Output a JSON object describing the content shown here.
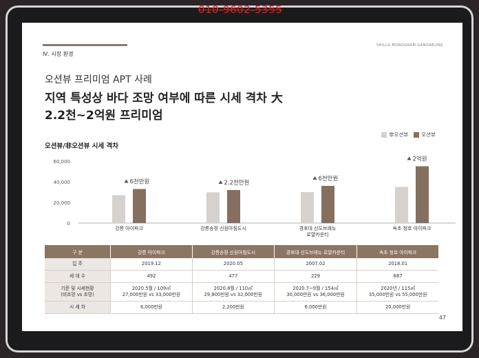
{
  "phone": "010-9602-5355",
  "header": {
    "section": "Ⅳ. 시장 환경",
    "brand": "SHILLA MONOGRAM GANGNEUNG"
  },
  "subtitle": "오션뷰 프리미엄 APT 사례",
  "headline": [
    "지역 특성상 바다 조망 여부에 따른 시세 격차 大",
    "2.2천~2억원 프리미엄"
  ],
  "chart_title": "오션뷰/非오션뷰 시세 격차",
  "colors": {
    "non_ocean": "#d6d1cc",
    "ocean": "#85705f",
    "table_header": "#8b7563",
    "arrow": "#555555"
  },
  "chart_data": {
    "type": "bar",
    "title": "오션뷰/非오션뷰 시세 격차",
    "categories": [
      "강릉 아이파크",
      "강릉송정 신원아침도시",
      "경포대 신도브래뉴 로얄카운티",
      "속초 청호 아이파크"
    ],
    "category_lines": [
      [
        "강릉 아이파크"
      ],
      [
        "강릉송정 신원아침도시"
      ],
      [
        "경포대 신도브래뉴",
        "로얄카운티"
      ],
      [
        "속초 청호 아이파크"
      ]
    ],
    "series": [
      {
        "name": "非오션뷰",
        "values": [
          27000,
          29800,
          30000,
          35000
        ]
      },
      {
        "name": "오션뷰",
        "values": [
          33000,
          32000,
          36000,
          55000
        ]
      }
    ],
    "annotations": [
      "6천만원",
      "2.2천만원",
      "6천만원",
      "2억원"
    ],
    "yticks": [
      "0",
      "20,000",
      "40,000",
      "60,000"
    ],
    "ylim": [
      0,
      60000
    ],
    "legend_position": "top-right",
    "grid": false
  },
  "table": {
    "headers": [
      "구 분",
      "강릉 아이파크",
      "강릉송정 신원아침도시",
      "경포대 신도브래뉴 로얄카운티",
      "속초 청호 아이파크"
    ],
    "rows": [
      {
        "label": [
          "입 주"
        ],
        "cells": [
          [
            "2019.12"
          ],
          [
            "2020.05"
          ],
          [
            "2007.02"
          ],
          [
            "2018.01"
          ]
        ]
      },
      {
        "label": [
          "세 대 수"
        ],
        "cells": [
          [
            "492"
          ],
          [
            "477"
          ],
          [
            "229"
          ],
          [
            "687"
          ]
        ]
      },
      {
        "label": [
          "기준 및 시세현황",
          "(비조망 vs 조망)"
        ],
        "cells": [
          [
            "2020.5월 / 109㎡",
            "27,000만원 vs 33,000만원"
          ],
          [
            "2020.8월 / 110㎡",
            "29,800만원 vs 32,000만원"
          ],
          [
            "2020.7~9월 / 154㎡",
            "30,000만원 vs 36,000만원"
          ],
          [
            "2020년 / 115㎡",
            "35,000만원 vs 55,000만원"
          ]
        ]
      },
      {
        "label": [
          "시 세 차"
        ],
        "cells": [
          [
            "6,000만원"
          ],
          [
            "2,200만원"
          ],
          [
            "6,000만원"
          ],
          [
            "20,000만원"
          ]
        ]
      }
    ]
  },
  "page_number": "47"
}
